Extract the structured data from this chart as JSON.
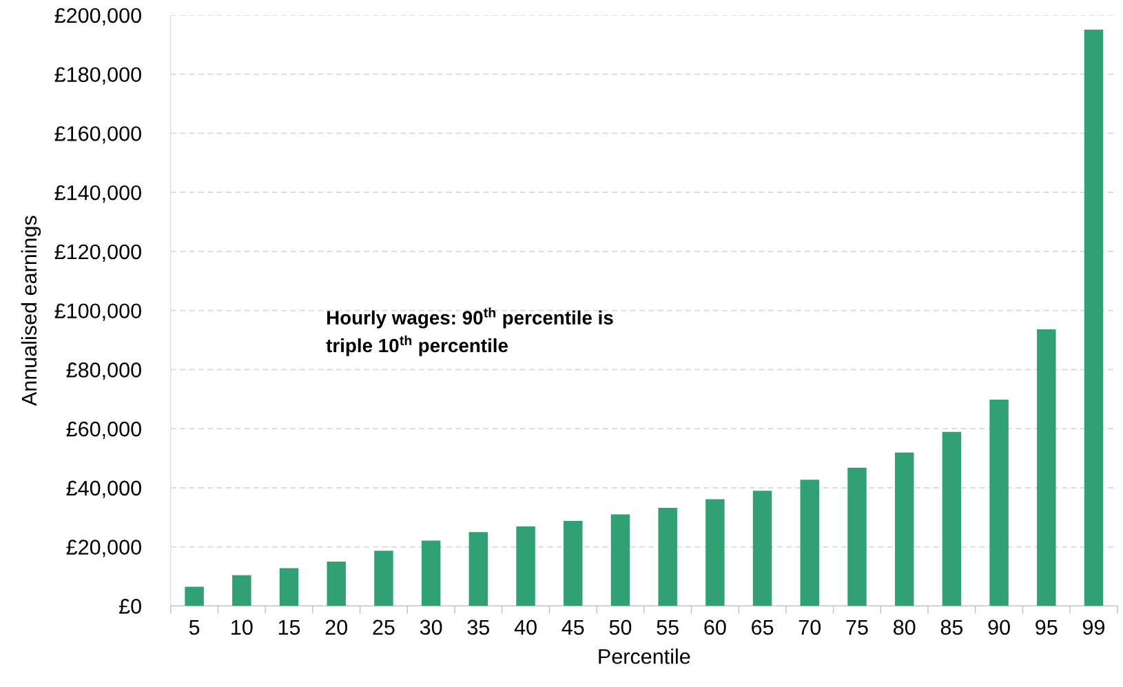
{
  "chart_data": {
    "type": "bar",
    "xlabel": "Percentile",
    "ylabel": "Annualised earnings",
    "categories": [
      "5",
      "10",
      "15",
      "20",
      "25",
      "30",
      "35",
      "40",
      "45",
      "50",
      "55",
      "60",
      "65",
      "70",
      "75",
      "80",
      "85",
      "90",
      "95",
      "99"
    ],
    "values": [
      6500,
      10400,
      12800,
      15000,
      18700,
      22100,
      25000,
      26900,
      28800,
      31000,
      33200,
      36100,
      39000,
      42700,
      46800,
      51900,
      58900,
      69800,
      93600,
      195100
    ],
    "color": "#31a175",
    "ylim": [
      0,
      200000
    ],
    "yticks": [
      {
        "value": 0,
        "label": "£0"
      },
      {
        "value": 20000,
        "label": "£20,000"
      },
      {
        "value": 40000,
        "label": "£40,000"
      },
      {
        "value": 60000,
        "label": "£60,000"
      },
      {
        "value": 80000,
        "label": "£80,000"
      },
      {
        "value": 100000,
        "label": "£100,000"
      },
      {
        "value": 120000,
        "label": "£120,000"
      },
      {
        "value": 140000,
        "label": "£140,000"
      },
      {
        "value": 160000,
        "label": "£160,000"
      },
      {
        "value": 180000,
        "label": "£180,000"
      },
      {
        "value": 200000,
        "label": "£200,000"
      }
    ],
    "grid": "y",
    "annotations": [
      "Hourly wages: 90$^{th}$ percentile is\ntriple 10$^{th}$ percentile"
    ]
  }
}
